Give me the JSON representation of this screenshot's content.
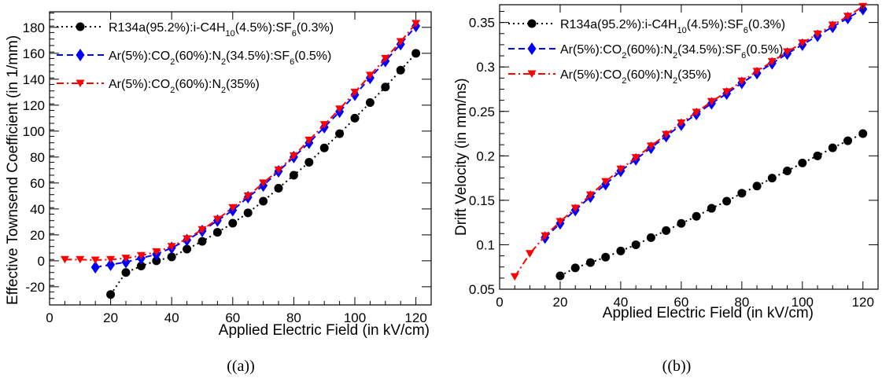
{
  "chart_data": [
    {
      "type": "line",
      "caption": "((a))",
      "xlabel": "Applied Electric Field (in kV/cm)",
      "ylabel": "Effective Townsend Coefficient (in 1/mm)",
      "xlim": [
        0,
        125
      ],
      "ylim": [
        -34,
        192
      ],
      "xticks": [
        0,
        20,
        40,
        60,
        80,
        100,
        120
      ],
      "yticks": [
        -20,
        0,
        20,
        40,
        60,
        80,
        100,
        120,
        140,
        160,
        180
      ],
      "grid": false,
      "legend_position": "top-left",
      "series": [
        {
          "name": "R134a(95.2%):i-C4H10(4.5%):SF6(0.3%)",
          "color": "#000000",
          "marker": "circle",
          "line": "dotted",
          "x": [
            20,
            25,
            30,
            35,
            40,
            45,
            50,
            55,
            60,
            65,
            70,
            75,
            80,
            85,
            90,
            95,
            100,
            105,
            110,
            115,
            120
          ],
          "y": [
            -26,
            -9,
            -4,
            0,
            3,
            9,
            15,
            22,
            29,
            37,
            46,
            56,
            66,
            76,
            87,
            98,
            110,
            122,
            134,
            147,
            160
          ]
        },
        {
          "name": "Ar(5%):CO2(60%):N2(34.5%):SF6(0.5%)",
          "color": "#0000ff",
          "marker": "diamond",
          "line": "dashed",
          "x": [
            15,
            20,
            25,
            30,
            35,
            40,
            45,
            50,
            55,
            60,
            65,
            70,
            75,
            80,
            85,
            90,
            95,
            100,
            105,
            110,
            115,
            120
          ],
          "y": [
            -5,
            -3,
            -1,
            2,
            5,
            10,
            16,
            23,
            31,
            39,
            49,
            58,
            69,
            80,
            91,
            103,
            115,
            128,
            141,
            154,
            167,
            181
          ]
        },
        {
          "name": "Ar(5%):CO2(60%):N2(35%)",
          "color": "#ff0000",
          "marker": "triangle-down",
          "line": "dash-dot",
          "x": [
            5,
            10,
            15,
            20,
            25,
            30,
            35,
            40,
            45,
            50,
            55,
            60,
            65,
            70,
            75,
            80,
            85,
            90,
            95,
            100,
            105,
            110,
            115,
            120
          ],
          "y": [
            1,
            1,
            0.5,
            1,
            2,
            4,
            7,
            11,
            17,
            24,
            32,
            41,
            50,
            60,
            70,
            81,
            93,
            105,
            117,
            130,
            143,
            156,
            169,
            183
          ]
        }
      ]
    },
    {
      "type": "line",
      "caption": "((b))",
      "xlabel": "Applied Electric Field (in kV/cm)",
      "ylabel": "Drift Velocity (in mm/ns)",
      "xlim": [
        0,
        125
      ],
      "ylim": [
        0.05,
        0.37
      ],
      "xticks": [
        0,
        20,
        40,
        60,
        80,
        100,
        120
      ],
      "yticks": [
        0.05,
        0.1,
        0.15,
        0.2,
        0.25,
        0.3,
        0.35
      ],
      "ytick_labels": [
        "0.05",
        "0.1",
        "0.15",
        "0.2",
        "0.25",
        "0.3",
        "0.35"
      ],
      "grid": false,
      "legend_position": "top-left",
      "series": [
        {
          "name": "R134a(95.2%):i-C4H10(4.5%):SF6(0.3%)",
          "color": "#000000",
          "marker": "circle",
          "line": "dotted",
          "x": [
            20,
            25,
            30,
            35,
            40,
            45,
            50,
            55,
            60,
            65,
            70,
            75,
            80,
            85,
            90,
            95,
            100,
            105,
            110,
            115,
            120
          ],
          "y": [
            0.065,
            0.074,
            0.08,
            0.086,
            0.093,
            0.1,
            0.108,
            0.116,
            0.124,
            0.132,
            0.141,
            0.149,
            0.158,
            0.166,
            0.175,
            0.183,
            0.192,
            0.2,
            0.209,
            0.217,
            0.225
          ]
        },
        {
          "name": "Ar(5%):CO2(60%):N2(34.5%):SF6(0.5%)",
          "color": "#0000ff",
          "marker": "diamond",
          "line": "dashed",
          "x": [
            15,
            20,
            25,
            30,
            35,
            40,
            45,
            50,
            55,
            60,
            65,
            70,
            75,
            80,
            85,
            90,
            95,
            100,
            105,
            110,
            115,
            120
          ],
          "y": [
            0.108,
            0.124,
            0.139,
            0.154,
            0.168,
            0.183,
            0.196,
            0.209,
            0.222,
            0.235,
            0.247,
            0.259,
            0.27,
            0.282,
            0.293,
            0.304,
            0.315,
            0.325,
            0.335,
            0.345,
            0.355,
            0.365
          ]
        },
        {
          "name": "Ar(5%):CO2(60%):N2(35%)",
          "color": "#ff0000",
          "marker": "triangle-down",
          "line": "dash-dot",
          "x": [
            5,
            10,
            15,
            20,
            25,
            30,
            35,
            40,
            45,
            50,
            55,
            60,
            65,
            70,
            75,
            80,
            85,
            90,
            95,
            100,
            105,
            110,
            115,
            120
          ],
          "y": [
            0.064,
            0.09,
            0.11,
            0.126,
            0.141,
            0.156,
            0.171,
            0.185,
            0.198,
            0.211,
            0.224,
            0.237,
            0.249,
            0.261,
            0.272,
            0.284,
            0.295,
            0.306,
            0.317,
            0.327,
            0.337,
            0.347,
            0.357,
            0.368
          ]
        }
      ]
    }
  ]
}
